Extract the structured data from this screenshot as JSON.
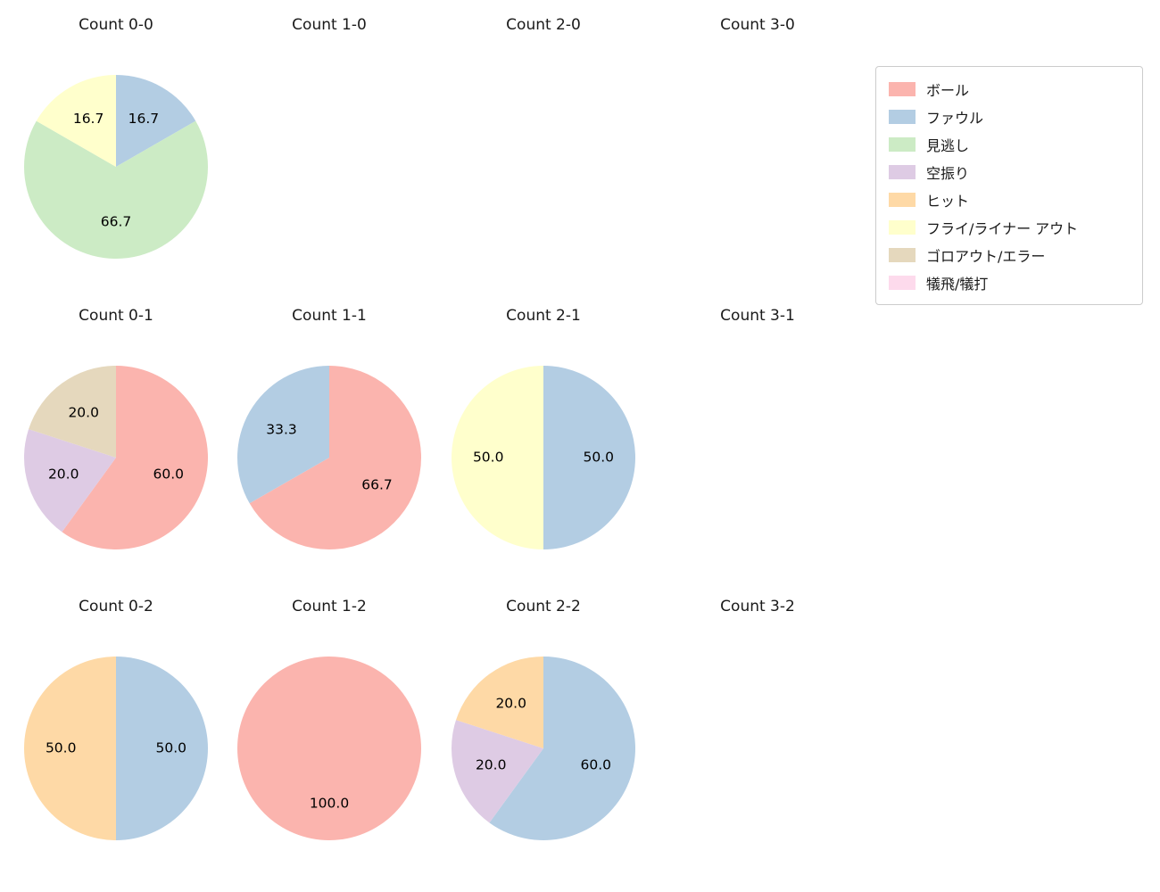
{
  "background_color": "#ffffff",
  "text_color": "#1a1a1a",
  "legend": {
    "items": [
      {
        "label": "ボール",
        "color": "#fbb4ae"
      },
      {
        "label": "ファウル",
        "color": "#b3cde3"
      },
      {
        "label": "見逃し",
        "color": "#ccebc5"
      },
      {
        "label": "空振り",
        "color": "#decbe4"
      },
      {
        "label": "ヒット",
        "color": "#fed9a6"
      },
      {
        "label": "フライ/ライナー アウト",
        "color": "#ffffcc"
      },
      {
        "label": "ゴロアウト/エラー",
        "color": "#e5d8bd"
      },
      {
        "label": "犠飛/犠打",
        "color": "#fddaec"
      }
    ]
  },
  "chart_data": [
    {
      "type": "pie",
      "title": "Count 0-0",
      "start_angle_deg": 0,
      "direction": "clockwise-from-top",
      "slices": [
        {
          "label": "ファウル",
          "value": 16.7,
          "color": "#b3cde3"
        },
        {
          "label": "見逃し",
          "value": 66.7,
          "color": "#ccebc5"
        },
        {
          "label": "フライ/ライナー アウト",
          "value": 16.7,
          "color": "#ffffcc"
        }
      ]
    },
    {
      "type": "pie",
      "title": "Count 1-0",
      "slices": []
    },
    {
      "type": "pie",
      "title": "Count 2-0",
      "slices": []
    },
    {
      "type": "pie",
      "title": "Count 3-0",
      "slices": []
    },
    {
      "type": "pie",
      "title": "Count 0-1",
      "start_angle_deg": 0,
      "direction": "clockwise-from-top",
      "slices": [
        {
          "label": "ボール",
          "value": 60.0,
          "color": "#fbb4ae"
        },
        {
          "label": "空振り",
          "value": 20.0,
          "color": "#decbe4"
        },
        {
          "label": "ゴロアウト/エラー",
          "value": 20.0,
          "color": "#e5d8bd"
        }
      ]
    },
    {
      "type": "pie",
      "title": "Count 1-1",
      "start_angle_deg": 0,
      "direction": "clockwise-from-top",
      "slices": [
        {
          "label": "ボール",
          "value": 66.7,
          "color": "#fbb4ae"
        },
        {
          "label": "ファウル",
          "value": 33.3,
          "color": "#b3cde3"
        }
      ]
    },
    {
      "type": "pie",
      "title": "Count 2-1",
      "start_angle_deg": 0,
      "direction": "clockwise-from-top",
      "slices": [
        {
          "label": "ファウル",
          "value": 50.0,
          "color": "#b3cde3"
        },
        {
          "label": "フライ/ライナー アウト",
          "value": 50.0,
          "color": "#ffffcc"
        }
      ]
    },
    {
      "type": "pie",
      "title": "Count 3-1",
      "slices": []
    },
    {
      "type": "pie",
      "title": "Count 0-2",
      "start_angle_deg": 0,
      "direction": "clockwise-from-top",
      "slices": [
        {
          "label": "ファウル",
          "value": 50.0,
          "color": "#b3cde3"
        },
        {
          "label": "ヒット",
          "value": 50.0,
          "color": "#fed9a6"
        }
      ]
    },
    {
      "type": "pie",
      "title": "Count 1-2",
      "start_angle_deg": 0,
      "direction": "clockwise-from-top",
      "slices": [
        {
          "label": "ボール",
          "value": 100.0,
          "color": "#fbb4ae"
        }
      ]
    },
    {
      "type": "pie",
      "title": "Count 2-2",
      "start_angle_deg": 0,
      "direction": "clockwise-from-top",
      "slices": [
        {
          "label": "ファウル",
          "value": 60.0,
          "color": "#b3cde3"
        },
        {
          "label": "空振り",
          "value": 20.0,
          "color": "#decbe4"
        },
        {
          "label": "ヒット",
          "value": 20.0,
          "color": "#fed9a6"
        }
      ]
    },
    {
      "type": "pie",
      "title": "Count 3-2",
      "slices": []
    }
  ]
}
